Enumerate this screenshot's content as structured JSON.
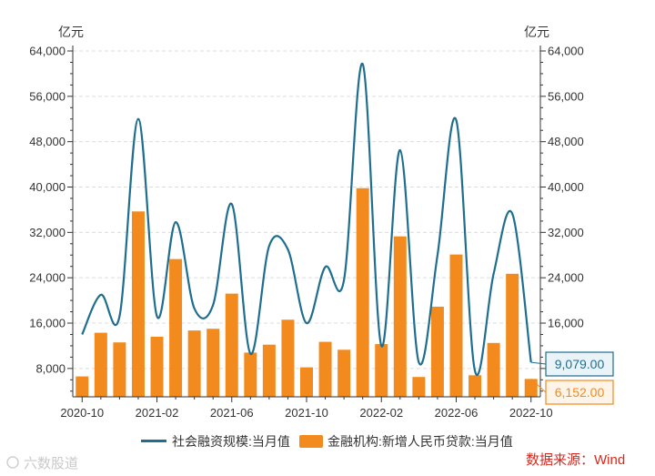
{
  "chart_data": {
    "type": "bar",
    "left_unit": "亿元",
    "right_unit": "亿元",
    "yticks": [
      "8,000",
      "16,000",
      "24,000",
      "32,000",
      "40,000",
      "48,000",
      "56,000",
      "64,000"
    ],
    "y_tick_values": [
      8000,
      16000,
      24000,
      32000,
      40000,
      48000,
      56000,
      64000
    ],
    "ylim": [
      3000,
      64000
    ],
    "xticks": [
      "2020-10",
      "2021-02",
      "2021-06",
      "2021-10",
      "2022-02",
      "2022-06",
      "2022-10"
    ],
    "categories": [
      "2020-10",
      "2020-11",
      "2020-12",
      "2021-01",
      "2021-02",
      "2021-03",
      "2021-04",
      "2021-05",
      "2021-06",
      "2021-07",
      "2021-08",
      "2021-09",
      "2021-10",
      "2021-11",
      "2021-12",
      "2022-01",
      "2022-02",
      "2022-03",
      "2022-04",
      "2022-05",
      "2022-06",
      "2022-07",
      "2022-08",
      "2022-09",
      "2022-10"
    ],
    "grid": "horizontal dashed",
    "legend_position": "bottom",
    "series": [
      {
        "name": "社会融资规模:当月值",
        "kind": "line",
        "color": "#1f6e8f",
        "values": [
          14000,
          21000,
          17200,
          52000,
          17200,
          33800,
          18600,
          19200,
          37000,
          10600,
          29600,
          29000,
          16000,
          25900,
          23600,
          61700,
          12000,
          46500,
          9100,
          28000,
          51800,
          7600,
          24700,
          35300,
          9079
        ]
      },
      {
        "name": "金融机构:新增人民币贷款:当月值",
        "kind": "bar",
        "color": "#f28a1d",
        "values": [
          6600,
          14300,
          12600,
          35700,
          13600,
          27300,
          14700,
          15000,
          21200,
          10800,
          12200,
          16600,
          8200,
          12700,
          11300,
          39800,
          12300,
          31300,
          6500,
          18900,
          28100,
          6800,
          12500,
          24700,
          6152
        ]
      }
    ],
    "callouts": [
      {
        "series": 0,
        "label": "9,079.00",
        "color": "#1f6e8f",
        "background": "#eaf3f7"
      },
      {
        "series": 1,
        "label": "6,152.00",
        "color": "#f28a1d",
        "background": "#fff4e8"
      }
    ]
  },
  "source": "数据来源：Wind",
  "watermark": "六数股道"
}
